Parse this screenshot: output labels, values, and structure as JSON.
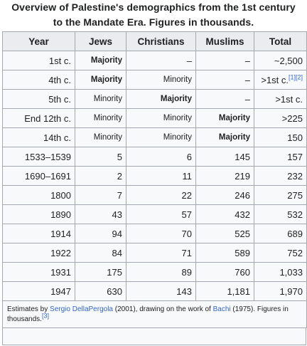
{
  "caption": {
    "line1": "Overview of Palestine's demographics from the 1st century",
    "line2": "to the Mandate Era. Figures in thousands."
  },
  "headers": [
    "Year",
    "Jews",
    "Christians",
    "Muslims",
    "Total"
  ],
  "rows": [
    {
      "year": "1st c.",
      "jews": "Majority",
      "christians": "–",
      "muslims": "–",
      "total": "~2,500",
      "total_refs": ""
    },
    {
      "year": "4th c.",
      "jews": "Majority",
      "christians": "Minority",
      "muslims": "–",
      "total": ">1st c.",
      "total_refs": "[1][2]"
    },
    {
      "year": "5th c.",
      "jews": "Minority",
      "christians": "Majority",
      "muslims": "–",
      "total": ">1st c.",
      "total_refs": ""
    },
    {
      "year": "End 12th c.",
      "jews": "Minority",
      "christians": "Minority",
      "muslims": "Majority",
      "total": ">225",
      "total_refs": ""
    },
    {
      "year": "14th c.",
      "jews": "Minority",
      "christians": "Minority",
      "muslims": "Majority",
      "total": "150",
      "total_refs": ""
    },
    {
      "year": "1533–1539",
      "jews": "5",
      "christians": "6",
      "muslims": "145",
      "total": "157",
      "total_refs": ""
    },
    {
      "year": "1690–1691",
      "jews": "2",
      "christians": "11",
      "muslims": "219",
      "total": "232",
      "total_refs": ""
    },
    {
      "year": "1800",
      "jews": "7",
      "christians": "22",
      "muslims": "246",
      "total": "275",
      "total_refs": ""
    },
    {
      "year": "1890",
      "jews": "43",
      "christians": "57",
      "muslims": "432",
      "total": "532",
      "total_refs": ""
    },
    {
      "year": "1914",
      "jews": "94",
      "christians": "70",
      "muslims": "525",
      "total": "689",
      "total_refs": ""
    },
    {
      "year": "1922",
      "jews": "84",
      "christians": "71",
      "muslims": "589",
      "total": "752",
      "total_refs": ""
    },
    {
      "year": "1931",
      "jews": "175",
      "christians": "89",
      "muslims": "760",
      "total": "1,033",
      "total_refs": ""
    },
    {
      "year": "1947",
      "jews": "630",
      "christians": "143",
      "muslims": "1,181",
      "total": "1,970",
      "total_refs": ""
    }
  ],
  "footer": {
    "text1": "Estimates by ",
    "link1": "Sergio DellaPergola",
    "text2": " (2001), drawing on the work of ",
    "link2": "Bachi",
    "text3": " (1975). Figures in thousands.",
    "ref": "[3]"
  },
  "colors": {
    "header_bg": "#eaecf0",
    "cell_bg": "#f8f9fa",
    "border": "#a2a9b1",
    "link": "#3366cc",
    "text": "#202122"
  }
}
